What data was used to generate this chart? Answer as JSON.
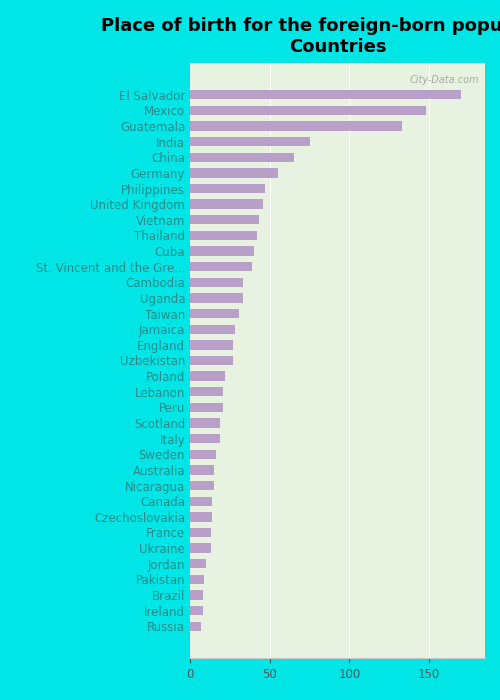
{
  "title": "Place of birth for the foreign-born population -\nCountries",
  "countries": [
    "El Salvador",
    "Mexico",
    "Guatemala",
    "India",
    "China",
    "Germany",
    "Philippines",
    "United Kingdom",
    "Vietnam",
    "Thailand",
    "Cuba",
    "St. Vincent and the Gre...",
    "Cambodia",
    "Uganda",
    "Taiwan",
    "Jamaica",
    "England",
    "Uzbekistan",
    "Poland",
    "Lebanon",
    "Peru",
    "Scotland",
    "Italy",
    "Sweden",
    "Australia",
    "Nicaragua",
    "Canada",
    "Czechoslovakia",
    "France",
    "Ukraine",
    "Jordan",
    "Pakistan",
    "Brazil",
    "Ireland",
    "Russia"
  ],
  "values": [
    170,
    148,
    133,
    75,
    65,
    55,
    47,
    46,
    43,
    42,
    40,
    39,
    33,
    33,
    31,
    28,
    27,
    27,
    22,
    21,
    21,
    19,
    19,
    16,
    15,
    15,
    14,
    14,
    13,
    13,
    10,
    9,
    8,
    8,
    7
  ],
  "bar_color": "#b8a0c8",
  "background_color": "#00e5e5",
  "plot_bg_color": "#e8f2e0",
  "title_fontsize": 13,
  "tick_fontsize": 8.5,
  "xlim": [
    0,
    185
  ],
  "watermark": "City-Data.com"
}
